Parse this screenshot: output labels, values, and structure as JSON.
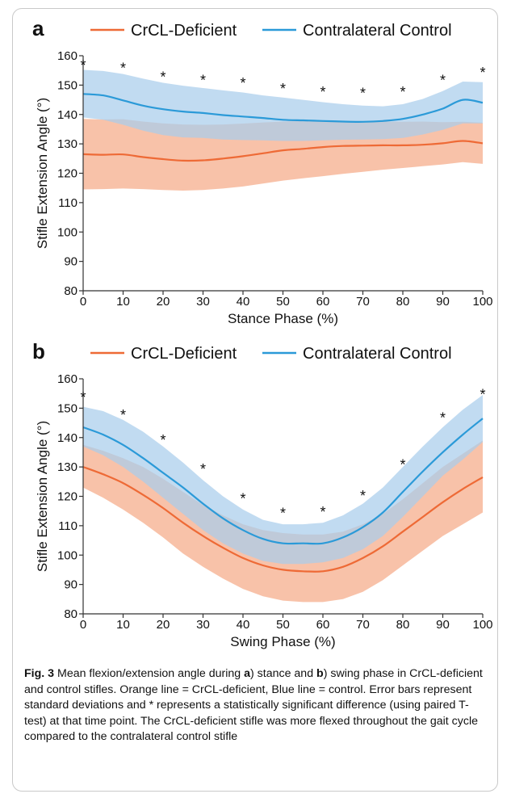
{
  "colors": {
    "deficient": "#ee6a36",
    "deficient_band": "#f7b79a",
    "control": "#2b9ad8",
    "control_band": "#a9cdeb",
    "axis": "#333333"
  },
  "legend": {
    "deficient": "CrCL-Deficient",
    "control": "Contralateral Control"
  },
  "chart_data": [
    {
      "panel_label": "a",
      "type": "line",
      "xlabel": "Stance Phase (%)",
      "ylabel": "Stifle Extension Angle (°)",
      "xlim": [
        0,
        100
      ],
      "ylim": [
        80,
        160
      ],
      "xticks": [
        0,
        10,
        20,
        30,
        40,
        50,
        60,
        70,
        80,
        90,
        100
      ],
      "yticks": [
        80,
        90,
        100,
        110,
        120,
        130,
        140,
        150,
        160
      ],
      "x": [
        0,
        5,
        10,
        15,
        20,
        25,
        30,
        35,
        40,
        45,
        50,
        55,
        60,
        65,
        70,
        75,
        80,
        85,
        90,
        95,
        100
      ],
      "series": [
        {
          "name": "CrCL-Deficient",
          "mean": [
            126.5,
            126.3,
            126.4,
            125.5,
            124.8,
            124.3,
            124.4,
            125.0,
            125.8,
            126.8,
            127.8,
            128.3,
            128.9,
            129.3,
            129.4,
            129.5,
            129.5,
            129.7,
            130.2,
            131.0,
            130.2
          ],
          "upper": [
            138.5,
            138.3,
            138.4,
            137.6,
            137.0,
            136.6,
            136.5,
            136.6,
            136.9,
            137.3,
            137.6,
            137.8,
            138.0,
            137.8,
            137.6,
            137.6,
            137.5,
            137.6,
            137.4,
            137.5,
            137.2
          ],
          "lower": [
            114.5,
            114.6,
            114.8,
            114.6,
            114.3,
            114.1,
            114.3,
            114.8,
            115.5,
            116.5,
            117.5,
            118.3,
            119.0,
            119.8,
            120.5,
            121.2,
            121.8,
            122.4,
            123.0,
            123.8,
            123.2
          ]
        },
        {
          "name": "Contralateral Control",
          "mean": [
            147.0,
            146.5,
            144.8,
            143.0,
            141.8,
            141.0,
            140.5,
            139.8,
            139.3,
            138.8,
            138.2,
            138.0,
            137.8,
            137.6,
            137.5,
            137.8,
            138.5,
            140.0,
            142.0,
            145.0,
            144.0
          ],
          "upper": [
            155.2,
            154.8,
            153.8,
            152.2,
            150.8,
            149.8,
            149.0,
            148.2,
            147.5,
            146.5,
            145.8,
            145.0,
            144.2,
            143.5,
            143.0,
            142.8,
            143.5,
            145.3,
            148.0,
            151.2,
            151.0
          ],
          "lower": [
            139.0,
            138.2,
            136.5,
            134.5,
            133.0,
            132.2,
            132.0,
            131.5,
            131.3,
            131.2,
            131.0,
            131.0,
            131.2,
            131.4,
            131.5,
            131.6,
            132.0,
            133.2,
            134.8,
            137.0,
            137.0
          ]
        }
      ],
      "significance": {
        "symbol": "*",
        "x": [
          0,
          10,
          20,
          30,
          40,
          50,
          60,
          70,
          80,
          90,
          100
        ],
        "y": [
          157.5,
          156.5,
          153.5,
          152.5,
          151.5,
          149.5,
          148.5,
          148.0,
          148.5,
          152.5,
          155.0
        ]
      }
    },
    {
      "panel_label": "b",
      "type": "line",
      "xlabel": "Swing Phase (%)",
      "ylabel": "Stifle Extension Angle (°)",
      "xlim": [
        0,
        100
      ],
      "ylim": [
        80,
        160
      ],
      "xticks": [
        0,
        10,
        20,
        30,
        40,
        50,
        60,
        70,
        80,
        90,
        100
      ],
      "yticks": [
        80,
        90,
        100,
        110,
        120,
        130,
        140,
        150,
        160
      ],
      "x": [
        0,
        5,
        10,
        15,
        20,
        25,
        30,
        35,
        40,
        45,
        50,
        55,
        60,
        65,
        70,
        75,
        80,
        85,
        90,
        95,
        100
      ],
      "series": [
        {
          "name": "CrCL-Deficient",
          "mean": [
            130.0,
            127.5,
            124.5,
            120.5,
            116.0,
            111.0,
            106.5,
            102.5,
            99.0,
            96.5,
            95.0,
            94.5,
            94.5,
            96.0,
            99.0,
            103.0,
            108.0,
            113.0,
            118.0,
            122.5,
            126.5
          ],
          "upper": [
            137.5,
            135.5,
            133.0,
            130.0,
            126.0,
            121.5,
            117.0,
            113.5,
            110.5,
            108.5,
            107.5,
            107.0,
            107.0,
            108.0,
            110.5,
            114.0,
            119.0,
            124.5,
            130.0,
            134.5,
            139.0
          ],
          "lower": [
            123.0,
            119.5,
            115.5,
            111.0,
            106.0,
            100.5,
            96.0,
            92.0,
            88.5,
            86.0,
            84.5,
            84.0,
            84.0,
            85.0,
            87.5,
            91.5,
            96.5,
            101.5,
            106.5,
            110.5,
            114.5
          ]
        },
        {
          "name": "Contralateral Control",
          "mean": [
            143.5,
            141.0,
            137.5,
            133.0,
            128.0,
            123.0,
            117.5,
            112.5,
            108.5,
            105.5,
            104.0,
            104.0,
            104.0,
            106.0,
            109.5,
            114.5,
            121.5,
            128.5,
            135.0,
            141.0,
            146.5
          ],
          "upper": [
            150.5,
            149.0,
            146.0,
            142.0,
            137.0,
            131.5,
            125.5,
            120.0,
            115.5,
            112.0,
            110.5,
            110.5,
            111.0,
            113.5,
            117.5,
            123.0,
            130.0,
            137.0,
            143.5,
            149.5,
            154.5
          ],
          "lower": [
            137.0,
            134.0,
            130.0,
            125.0,
            119.5,
            114.0,
            108.5,
            104.0,
            100.5,
            98.0,
            97.0,
            97.0,
            97.5,
            99.0,
            102.0,
            106.5,
            113.0,
            120.0,
            127.0,
            132.5,
            138.5
          ]
        }
      ],
      "significance": {
        "symbol": "*",
        "x": [
          0,
          10,
          20,
          30,
          40,
          50,
          60,
          70,
          80,
          90,
          100
        ],
        "y": [
          154.5,
          148.5,
          140.0,
          130.0,
          120.0,
          115.0,
          115.5,
          121.0,
          131.5,
          147.5,
          155.5
        ]
      }
    }
  ],
  "caption": {
    "fig_label": "Fig. 3",
    "text_1": " Mean flexion/extension angle during ",
    "label_a": "a",
    "text_2": ") stance and ",
    "label_b": "b",
    "text_3": ") swing phase in CrCL-deficient and control stifles. Orange line = CrCL-deficient, Blue line = control. Error bars represent standard deviations and * represents a statistically significant difference (using paired T-test) at that time point. The CrCL-deficient stifle was more flexed throughout the gait cycle compared to the contralateral control stifle"
  }
}
